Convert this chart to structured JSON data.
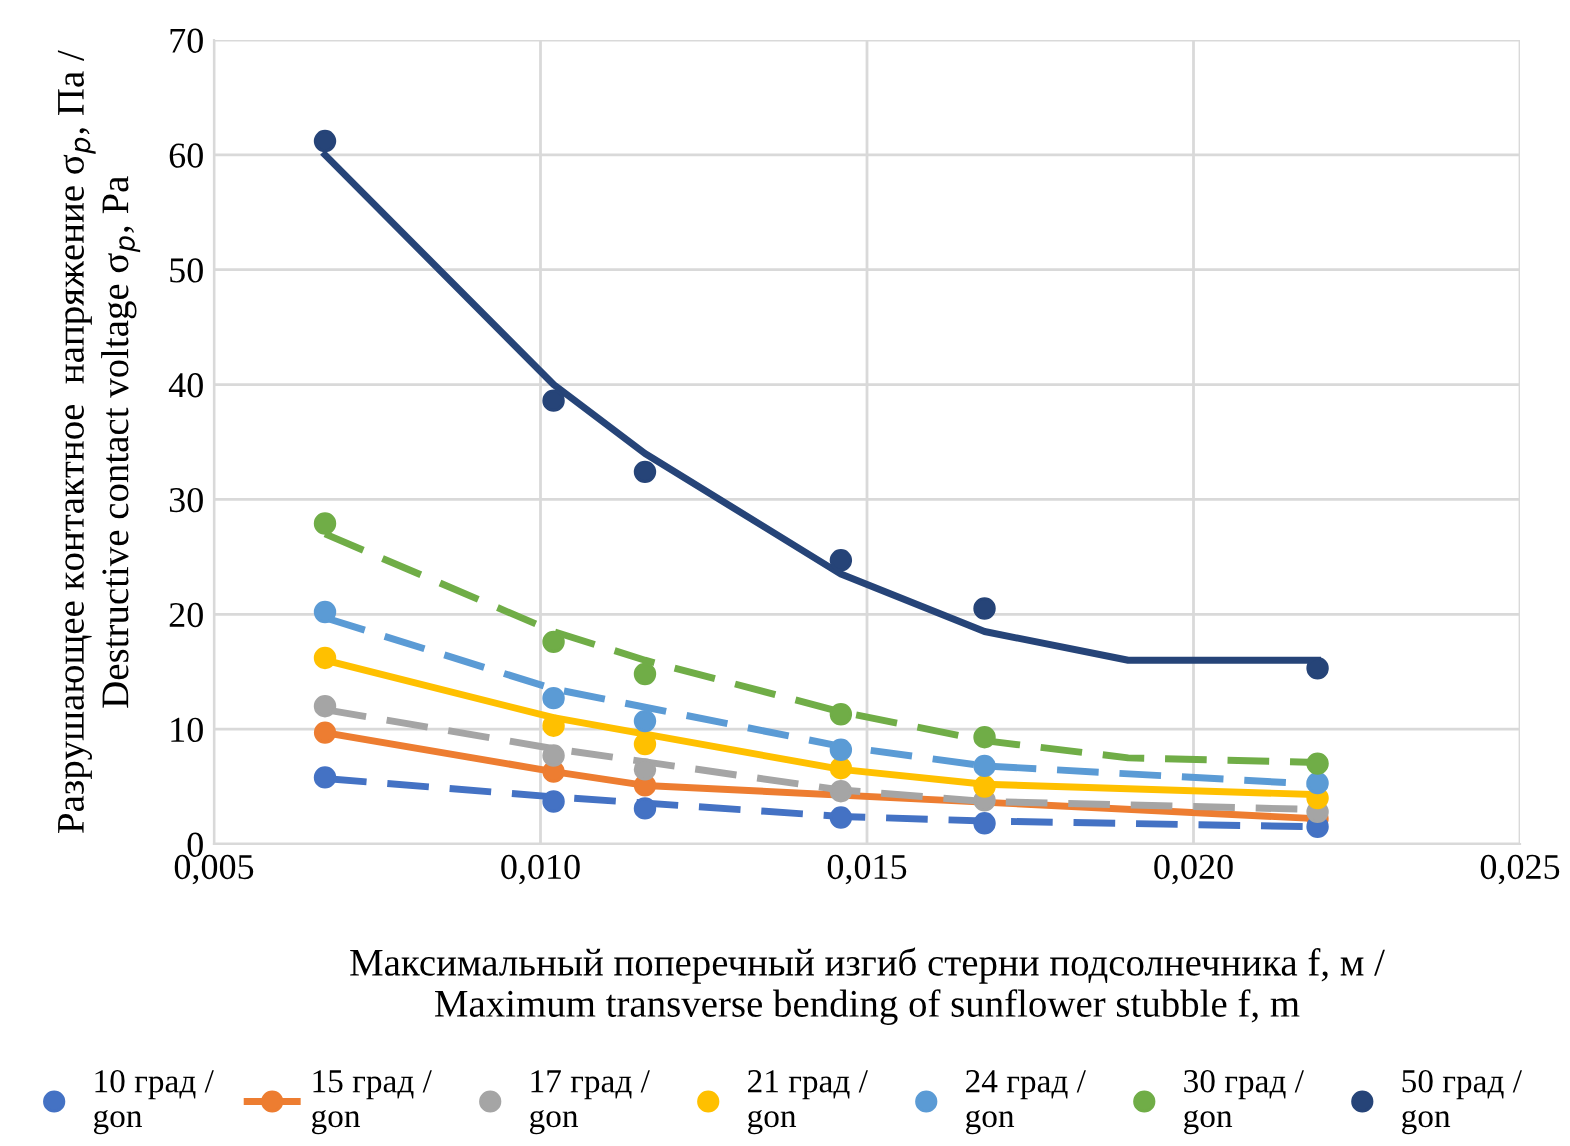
{
  "chart_data": {
    "type": "scatter",
    "xlabel": "Максимальный поперечный изгиб стерни подсолнечника f, м /\nMaximum transverse bending of sunflower stubble f, m",
    "ylabel": "Разрушающее контактное  напряжение σ$_{p}$, Па /\nDestructive contact voltage σ$_{p}$, Pa",
    "x": [
      0.0067,
      0.0102,
      0.0116,
      0.0146,
      0.0168,
      0.0219
    ],
    "series": [
      {
        "name": "10 град /\ngon",
        "color": "#4472c4",
        "values": [
          5.8,
          3.7,
          3.1,
          2.3,
          1.8,
          1.5
        ]
      },
      {
        "name": "15 град /\ngon",
        "color": "#ed7d31",
        "type": "line",
        "values": [
          9.7,
          6.3,
          5.1,
          null,
          null,
          2.2
        ]
      },
      {
        "name": "17 град /\ngon",
        "color": "#a5a5a5",
        "values": [
          12.0,
          7.7,
          6.5,
          4.6,
          3.8,
          2.8
        ]
      },
      {
        "name": "21 град /\ngon",
        "color": "#ffc000",
        "values": [
          16.2,
          10.3,
          8.7,
          6.6,
          5.0,
          4.0
        ]
      },
      {
        "name": "24 град /\ngon",
        "color": "#5b9bd5",
        "values": [
          20.2,
          12.7,
          10.7,
          8.2,
          6.8,
          5.3
        ]
      },
      {
        "name": "30 град /\ngon",
        "color": "#70ad47",
        "values": [
          27.9,
          17.6,
          14.8,
          11.3,
          9.3,
          7.0
        ]
      },
      {
        "name": "50 град /\ngon",
        "color": "#264478",
        "values": [
          61.2,
          38.6,
          32.4,
          24.7,
          20.5,
          15.3
        ]
      },
      {
        "type": "line",
        "color": "#4472c4",
        "marker": "none",
        "line_style": "dashed",
        "x": [
          0.0067,
          0.0102,
          0.0146,
          0.0168,
          0.0219
        ],
        "values": [
          5.7,
          4.1,
          2.4,
          2.0,
          1.5
        ]
      },
      {
        "type": "line",
        "color": "#a5a5a5",
        "marker": "none",
        "line_style": "dashed",
        "x": [
          0.0067,
          0.0102,
          0.0146,
          0.0168,
          0.0219
        ],
        "values": [
          11.7,
          8.3,
          4.7,
          3.7,
          3.0
        ]
      },
      {
        "type": "line",
        "color": "#ffc000",
        "marker": "none",
        "line_style": "solid",
        "x": [
          0.0067,
          0.0102,
          0.0146,
          0.0168,
          0.0219
        ],
        "values": [
          16.0,
          11.0,
          6.5,
          5.2,
          4.3
        ]
      },
      {
        "type": "line",
        "color": "#5b9bd5",
        "marker": "none",
        "line_style": "dashed",
        "x": [
          0.0067,
          0.0102,
          0.0146,
          0.0168,
          0.0219
        ],
        "values": [
          19.7,
          13.5,
          8.5,
          6.8,
          5.2
        ]
      },
      {
        "type": "line",
        "color": "#70ad47",
        "marker": "none",
        "line_style": "dashed",
        "x": [
          0.0067,
          0.0102,
          0.0116,
          0.0146,
          0.0168,
          0.019,
          0.0219
        ],
        "values": [
          27.0,
          18.5,
          16.0,
          11.5,
          9.0,
          7.5,
          7.1
        ]
      },
      {
        "type": "line",
        "color": "#264478",
        "marker": "none",
        "line_style": "solid",
        "x": [
          0.0067,
          0.0102,
          0.0116,
          0.0146,
          0.0168,
          0.019,
          0.0219
        ],
        "values": [
          60.0,
          40.0,
          34.0,
          23.5,
          18.5,
          16.0,
          16.0
        ]
      }
    ],
    "xlim": [
      0.005,
      0.025
    ],
    "xticks": [
      {
        "value": 0.005,
        "label": "0,005"
      },
      {
        "value": 0.01,
        "label": "0,010"
      },
      {
        "value": 0.015,
        "label": "0,015"
      },
      {
        "value": 0.02,
        "label": "0,020"
      },
      {
        "value": 0.025,
        "label": "0,025"
      }
    ],
    "ylim": [
      0,
      70
    ],
    "yticks": [
      0,
      10,
      20,
      30,
      40,
      50,
      60,
      70
    ],
    "grid": true,
    "legend": "bottom",
    "marker": "circle"
  }
}
